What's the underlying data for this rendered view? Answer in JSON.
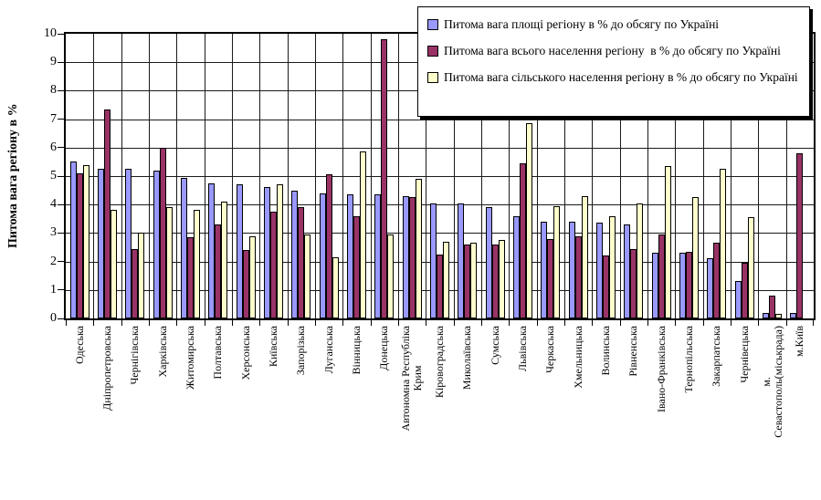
{
  "chart_data": {
    "type": "bar",
    "title": "",
    "ylabel": "Питома вага регіону в %",
    "xlabel": "",
    "ylim": [
      0,
      10
    ],
    "ytick_labels": [
      "0",
      "1",
      "2",
      "3",
      "4",
      "5",
      "6",
      "7",
      "8",
      "9",
      "10"
    ],
    "grid": true,
    "legend_position": "top-right-overlay",
    "plot_bg": "#FFFFFF",
    "gridline_color": "#1A1A1A",
    "categories": [
      "Одеська",
      "Дніпропетровська",
      "Чернігівська",
      "Харківська",
      "Житомирська",
      "Полтавська",
      "Херсонська",
      "Київська",
      "Запорізька",
      "Луганська",
      "Вінницька",
      "Донецька",
      "Автономна Республіка\nКрим",
      "Кіровоградська",
      "Миколаївська",
      "Сумська",
      "Львівська",
      "Черкаська",
      "Хмельницька",
      "Волинська",
      "Рівненська",
      "Івано-Франківська",
      "Тернопільська",
      "Закарпатська",
      "Чернівецька",
      "м.\nСевастополь(міськрада)",
      "м.Київ"
    ],
    "series": [
      {
        "name": "Питома вага площі регіону в % до обсягу по Україні",
        "color": "#9999FF",
        "values": [
          5.5,
          5.25,
          5.25,
          5.2,
          4.95,
          4.75,
          4.7,
          4.6,
          4.5,
          4.4,
          4.35,
          4.35,
          4.3,
          4.05,
          4.05,
          3.9,
          3.6,
          3.4,
          3.4,
          3.35,
          3.3,
          2.3,
          2.3,
          2.1,
          1.3,
          0.2,
          0.2
        ]
      },
      {
        "name": "Питома вага всього населення регіону  в % до обсягу по Україні",
        "color": "#993366",
        "values": [
          5.1,
          7.35,
          2.45,
          6.0,
          2.85,
          3.3,
          2.4,
          3.75,
          3.9,
          5.05,
          3.6,
          9.8,
          4.25,
          2.25,
          2.6,
          2.6,
          5.45,
          2.8,
          2.9,
          2.2,
          2.45,
          2.95,
          2.35,
          2.65,
          1.95,
          0.8,
          5.8
        ]
      },
      {
        "name": "Питома вага сільського населення регіону в % до обсягу по Україні",
        "color": "#FFFFCC",
        "values": [
          5.4,
          3.8,
          3.0,
          3.9,
          3.8,
          4.1,
          2.9,
          4.7,
          2.95,
          2.15,
          5.85,
          2.95,
          4.9,
          2.7,
          2.65,
          2.75,
          6.85,
          3.95,
          4.3,
          3.6,
          4.05,
          5.35,
          4.25,
          5.25,
          3.55,
          0.15,
          0
        ]
      }
    ]
  }
}
